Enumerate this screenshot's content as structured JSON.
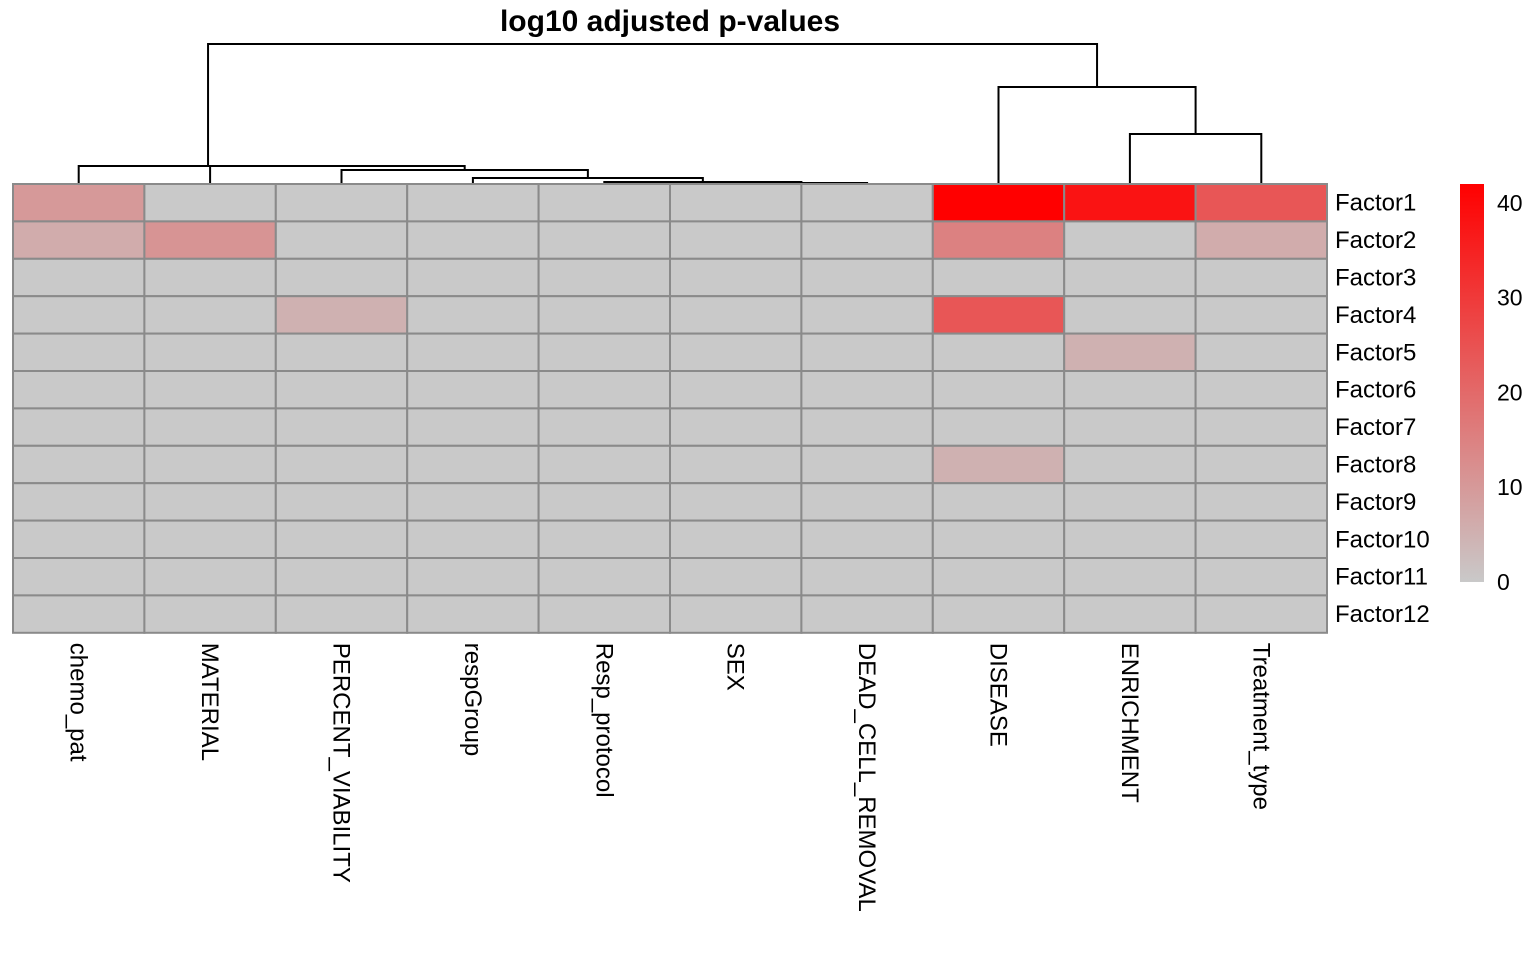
{
  "chart_data": {
    "type": "heatmap",
    "title": "log10 adjusted p-values",
    "columns": [
      "chemo_pat",
      "MATERIAL",
      "PERCENT_VIABILITY",
      "respGroup",
      "Resp_protocol",
      "SEX",
      "DEAD_CELL_REMOVAL",
      "DISEASE",
      "ENRICHMENT",
      "Treatment_type"
    ],
    "rows": [
      "Factor1",
      "Factor2",
      "Factor3",
      "Factor4",
      "Factor5",
      "Factor6",
      "Factor7",
      "Factor8",
      "Factor9",
      "Factor10",
      "Factor11",
      "Factor12"
    ],
    "values": [
      [
        10,
        0,
        0,
        0,
        0,
        0,
        0,
        42,
        38,
        24
      ],
      [
        6,
        11,
        0,
        0,
        0,
        0,
        0,
        15,
        0,
        6
      ],
      [
        0,
        0,
        0,
        0,
        0,
        0,
        0,
        0,
        0,
        0
      ],
      [
        0,
        0,
        5,
        0,
        0,
        0,
        0,
        24,
        0,
        0
      ],
      [
        0,
        0,
        0,
        0,
        0,
        0,
        0,
        0,
        5,
        0
      ],
      [
        0,
        0,
        0,
        0,
        0,
        0,
        0,
        0,
        0,
        0
      ],
      [
        0,
        0,
        0,
        0,
        0,
        0,
        0,
        0,
        0,
        0
      ],
      [
        0,
        0,
        0,
        0,
        0,
        0,
        0,
        5,
        0,
        0
      ],
      [
        0,
        0,
        0,
        0,
        0,
        0,
        0,
        0,
        0,
        0
      ],
      [
        0,
        0,
        0,
        0,
        0,
        0,
        0,
        0,
        0,
        0
      ],
      [
        0,
        0,
        0,
        0,
        0,
        0,
        0,
        0,
        0,
        0
      ],
      [
        0,
        0,
        0,
        0,
        0,
        0,
        0,
        0,
        0,
        0
      ]
    ],
    "color_scale": {
      "low_color": "#c9c9c9",
      "high_color": "#ff0000",
      "min": 0,
      "max": 42,
      "ticks": [
        0,
        10,
        20,
        30,
        40
      ]
    },
    "column_dendrogram": true,
    "legend_placement": "right"
  }
}
